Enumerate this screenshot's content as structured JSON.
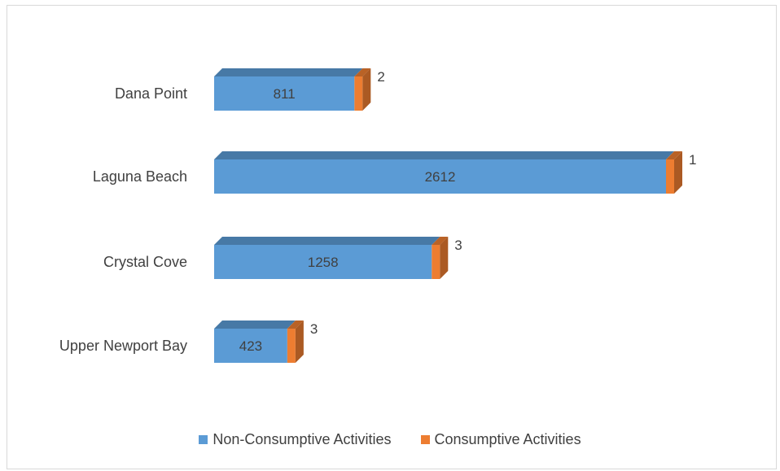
{
  "chart_data": {
    "type": "bar",
    "orientation": "horizontal",
    "stacked": true,
    "style": "3d",
    "categories": [
      "Dana Point",
      "Laguna Beach",
      "Crystal Cove",
      "Upper Newport Bay"
    ],
    "series": [
      {
        "name": "Non-Consumptive Activities",
        "values": [
          811,
          2612,
          1258,
          423
        ],
        "color": "#5b9bd5"
      },
      {
        "name": "Consumptive Activities",
        "values": [
          2,
          1,
          3,
          3
        ],
        "color": "#ed7d31"
      }
    ],
    "title": "",
    "xlabel": "",
    "ylabel": "",
    "grid": false,
    "legend_position": "bottom"
  }
}
